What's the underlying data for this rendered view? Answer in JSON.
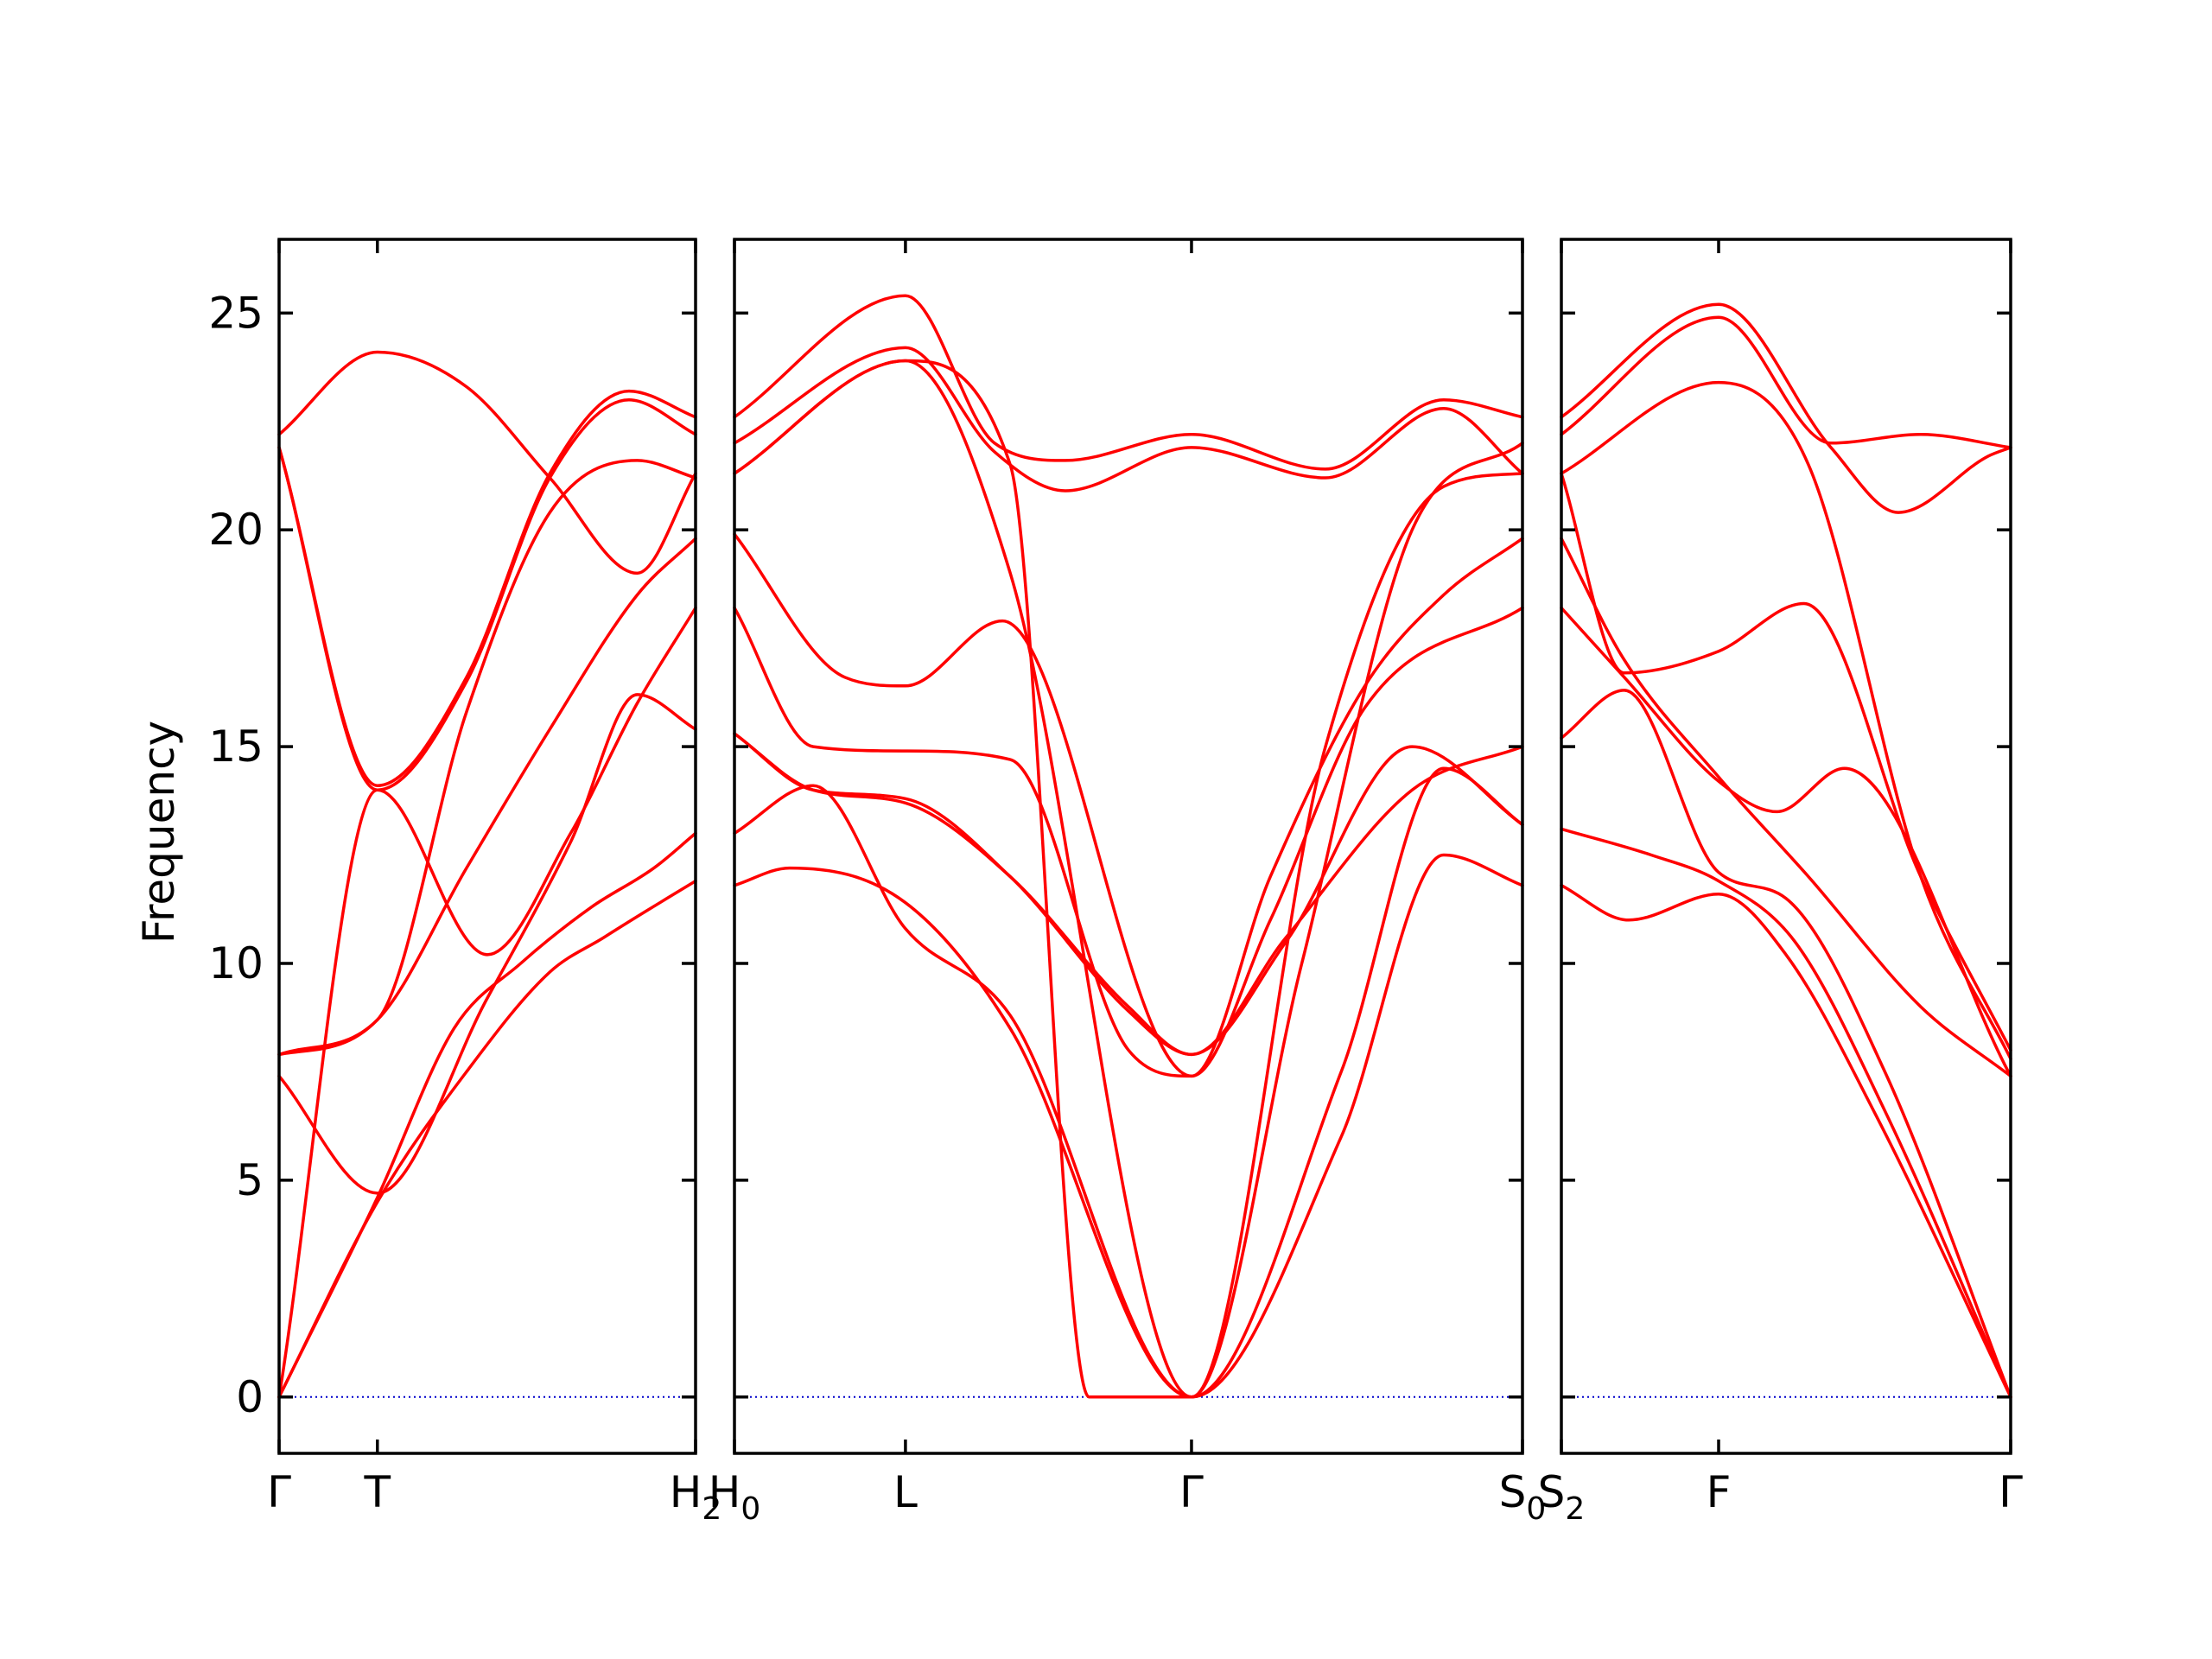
{
  "chart_data": {
    "type": "line",
    "ylabel": "Frequency",
    "ylim": [
      -1.3,
      26.7
    ],
    "yticks": [
      0,
      5,
      10,
      15,
      20,
      25
    ],
    "grid": false,
    "colors": {
      "bands": "#ff0000",
      "zero_line": "#0000cc"
    },
    "panels": [
      {
        "x_range": [
          0,
          1
        ],
        "ticks": [
          {
            "x": 0,
            "label": "Γ",
            "sub": ""
          },
          {
            "x": 0.236,
            "label": "T",
            "sub": ""
          },
          {
            "x": 1,
            "label": "H",
            "sub": "2"
          }
        ],
        "series": [
          {
            "x": [
              0,
              0.236,
              0.45,
              0.65,
              0.78,
              0.88,
              1
            ],
            "y": [
              0,
              4.5,
              7.5,
              9.8,
              10.6,
              11.2,
              11.9
            ]
          },
          {
            "x": [
              0,
              0.236,
              0.42,
              0.58,
              0.75,
              0.9,
              1
            ],
            "y": [
              0,
              4.6,
              8.5,
              10.0,
              11.3,
              12.2,
              13.0
            ]
          },
          {
            "x": [
              0,
              0.236,
              0.5,
              0.7,
              0.86,
              1
            ],
            "y": [
              7.4,
              4.7,
              9.2,
              12.8,
              16.2,
              15.4
            ]
          },
          {
            "x": [
              0,
              0.236,
              0.5,
              0.7,
              0.86,
              1
            ],
            "y": [
              0,
              14.0,
              10.2,
              13.0,
              16.0,
              18.2
            ]
          },
          {
            "x": [
              0,
              0.236,
              0.45,
              0.65,
              0.86,
              1
            ],
            "y": [
              7.9,
              8.7,
              12.2,
              15.4,
              18.5,
              19.8
            ]
          },
          {
            "x": [
              0,
              0.236,
              0.45,
              0.65,
              0.86,
              1
            ],
            "y": [
              7.9,
              8.7,
              15.8,
              20.4,
              21.6,
              21.2
            ]
          },
          {
            "x": [
              0,
              0.236,
              0.45,
              0.65,
              0.84,
              1
            ],
            "y": [
              21.9,
              14.0,
              16.5,
              21.2,
              23.0,
              22.2
            ]
          },
          {
            "x": [
              0,
              0.236,
              0.45,
              0.65,
              0.84,
              1
            ],
            "y": [
              21.9,
              14.1,
              16.6,
              21.3,
              23.2,
              22.6
            ]
          },
          {
            "x": [
              0,
              0.236,
              0.45,
              0.65,
              0.86,
              1
            ],
            "y": [
              22.2,
              24.1,
              23.3,
              21.2,
              19.0,
              21.3
            ]
          }
        ]
      },
      {
        "x_range": [
          0,
          1
        ],
        "ticks": [
          {
            "x": 0,
            "label": "H",
            "sub": "0"
          },
          {
            "x": 0.217,
            "label": "L",
            "sub": ""
          },
          {
            "x": 0.58,
            "label": "Γ",
            "sub": ""
          },
          {
            "x": 1,
            "label": "S",
            "sub": "0"
          }
        ],
        "series": [
          {
            "x": [
              0,
              0.07,
              0.217,
              0.35,
              0.58,
              0.77,
              0.9,
              1
            ],
            "y": [
              11.8,
              12.2,
              11.4,
              8.5,
              0,
              6.0,
              12.5,
              11.8
            ]
          },
          {
            "x": [
              0,
              0.1,
              0.217,
              0.35,
              0.58,
              0.77,
              0.9,
              1
            ],
            "y": [
              13.0,
              14.1,
              10.8,
              8.8,
              0,
              7.5,
              14.5,
              13.2
            ]
          },
          {
            "x": [
              0,
              0.1,
              0.217,
              0.35,
              0.5,
              0.58,
              0.7,
              0.86,
              1
            ],
            "y": [
              15.3,
              14.0,
              13.7,
              12.0,
              9.0,
              7.9,
              10.5,
              15.0,
              13.2
            ]
          },
          {
            "x": [
              0,
              0.1,
              0.217,
              0.35,
              0.5,
              0.58,
              0.7,
              0.86,
              1
            ],
            "y": [
              15.3,
              14.0,
              13.8,
              12.0,
              8.9,
              7.9,
              10.6,
              14.0,
              15.0
            ]
          },
          {
            "x": [
              0,
              0.1,
              0.217,
              0.35,
              0.5,
              0.58,
              0.68,
              0.8,
              1
            ],
            "y": [
              18.2,
              15.0,
              14.9,
              14.7,
              8.0,
              7.4,
              11.0,
              15.9,
              18.2
            ]
          },
          {
            "x": [
              0,
              0.14,
              0.217,
              0.34,
              0.58,
              0.68,
              0.8,
              0.9,
              1
            ],
            "y": [
              19.9,
              16.6,
              16.4,
              17.9,
              7.4,
              12.0,
              16.4,
              18.5,
              19.8
            ]
          },
          {
            "x": [
              0,
              0.217,
              0.35,
              0.45,
              0.58,
              0.75,
              0.9,
              1
            ],
            "y": [
              21.3,
              23.9,
              21.5,
              0,
              0,
              15.0,
              21.0,
              21.3
            ]
          },
          {
            "x": [
              0,
              0.217,
              0.33,
              0.42,
              0.58,
              0.75,
              0.9,
              1
            ],
            "y": [
              22.0,
              24.2,
              21.8,
              20.9,
              21.9,
              21.2,
              22.8,
              21.3
            ]
          },
          {
            "x": [
              0,
              0.217,
              0.33,
              0.42,
              0.58,
              0.75,
              0.9,
              1
            ],
            "y": [
              22.6,
              25.4,
              22.0,
              21.6,
              22.2,
              21.4,
              23.0,
              22.6
            ]
          },
          {
            "x": [
              0,
              0.217,
              0.35,
              0.58,
              0.72,
              0.86,
              1
            ],
            "y": [
              21.3,
              23.9,
              19.0,
              0,
              10.0,
              20.0,
              22.0
            ]
          }
        ]
      },
      {
        "x_range": [
          0,
          1
        ],
        "ticks": [
          {
            "x": 0,
            "label": "S",
            "sub": "2"
          },
          {
            "x": 0.35,
            "label": "F",
            "sub": ""
          },
          {
            "x": 1,
            "label": "Γ",
            "sub": ""
          }
        ],
        "series": [
          {
            "x": [
              0,
              0.15,
              0.35,
              0.5,
              0.7,
              1
            ],
            "y": [
              11.8,
              11.0,
              11.6,
              10.2,
              6.5,
              0
            ]
          },
          {
            "x": [
              0,
              0.2,
              0.35,
              0.52,
              0.72,
              1
            ],
            "y": [
              13.1,
              12.5,
              11.9,
              10.5,
              6.6,
              0
            ]
          },
          {
            "x": [
              0,
              0.14,
              0.35,
              0.5,
              0.72,
              1
            ],
            "y": [
              15.2,
              16.3,
              12.1,
              11.5,
              7.5,
              0
            ]
          },
          {
            "x": [
              0,
              0.14,
              0.35,
              0.48,
              0.63,
              1
            ],
            "y": [
              18.2,
              16.6,
              14.2,
              13.5,
              14.5,
              7.4
            ]
          },
          {
            "x": [
              0,
              0.14,
              0.35,
              0.55,
              0.8,
              1
            ],
            "y": [
              19.8,
              17.0,
              14.3,
              12.0,
              9.0,
              7.4
            ]
          },
          {
            "x": [
              0,
              0.14,
              0.35,
              0.54,
              0.8,
              1
            ],
            "y": [
              21.3,
              16.7,
              17.2,
              18.3,
              12.0,
              8.0
            ]
          },
          {
            "x": [
              0,
              0.35,
              0.55,
              0.8,
              1
            ],
            "y": [
              21.3,
              23.4,
              21.5,
              12.0,
              7.8
            ]
          },
          {
            "x": [
              0,
              0.35,
              0.6,
              0.8,
              1
            ],
            "y": [
              22.2,
              24.9,
              22.0,
              22.2,
              21.9
            ]
          },
          {
            "x": [
              0,
              0.35,
              0.6,
              0.75,
              0.95,
              1
            ],
            "y": [
              22.6,
              25.2,
              21.9,
              20.4,
              21.7,
              21.9
            ]
          }
        ]
      }
    ]
  }
}
